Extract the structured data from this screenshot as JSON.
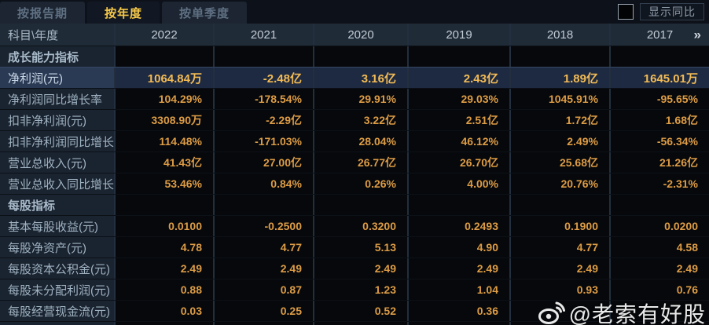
{
  "tabs": [
    {
      "label": "按报告期",
      "active": false
    },
    {
      "label": "按年度",
      "active": true
    },
    {
      "label": "按单季度",
      "active": false
    }
  ],
  "controls": {
    "show_yoy_label": "显示同比",
    "checkbox_checked": false
  },
  "table": {
    "corner_label": "科目\\年度",
    "years": [
      "2022",
      "2021",
      "2020",
      "2019",
      "2018",
      "2017"
    ],
    "more_icon": "»",
    "rows": [
      {
        "type": "section",
        "label": "成长能力指标"
      },
      {
        "type": "data",
        "label": "净利润(元)",
        "highlight": true,
        "values": [
          "1064.84万",
          "-2.48亿",
          "3.16亿",
          "2.43亿",
          "1.89亿",
          "1645.01万"
        ]
      },
      {
        "type": "data",
        "label": "净利润同比增长率",
        "values": [
          "104.29%",
          "-178.54%",
          "29.91%",
          "29.03%",
          "1045.91%",
          "-95.65%"
        ]
      },
      {
        "type": "data",
        "label": "扣非净利润(元)",
        "values": [
          "3308.90万",
          "-2.29亿",
          "3.22亿",
          "2.51亿",
          "1.72亿",
          "1.68亿"
        ]
      },
      {
        "type": "data",
        "label": "扣非净利润同比增长率",
        "values": [
          "114.48%",
          "-171.03%",
          "28.04%",
          "46.12%",
          "2.49%",
          "-56.34%"
        ]
      },
      {
        "type": "data",
        "label": "营业总收入(元)",
        "values": [
          "41.43亿",
          "27.00亿",
          "26.77亿",
          "26.70亿",
          "25.68亿",
          "21.26亿"
        ]
      },
      {
        "type": "data",
        "label": "营业总收入同比增长率",
        "values": [
          "53.46%",
          "0.84%",
          "0.26%",
          "4.00%",
          "20.76%",
          "-2.31%"
        ]
      },
      {
        "type": "section",
        "label": "每股指标"
      },
      {
        "type": "data",
        "label": "基本每股收益(元)",
        "values": [
          "0.0100",
          "-0.2500",
          "0.3200",
          "0.2493",
          "0.1900",
          "0.0200"
        ]
      },
      {
        "type": "data",
        "label": "每股净资产(元)",
        "values": [
          "4.78",
          "4.77",
          "5.13",
          "4.90",
          "4.77",
          "4.58"
        ]
      },
      {
        "type": "data",
        "label": "每股资本公积金(元)",
        "values": [
          "2.49",
          "2.49",
          "2.49",
          "2.49",
          "2.49",
          "2.49"
        ]
      },
      {
        "type": "data",
        "label": "每股未分配利润(元)",
        "values": [
          "0.88",
          "0.87",
          "1.23",
          "1.04",
          "0.93",
          "0.76"
        ]
      },
      {
        "type": "data",
        "label": "每股经营现金流(元)",
        "values": [
          "0.03",
          "0.25",
          "0.52",
          "0.36",
          "",
          ""
        ]
      }
    ]
  },
  "watermark": {
    "handle": "@老索有好股",
    "icon": "weibo-logo"
  },
  "colors": {
    "accent_gold": "#f6c949",
    "value_orange": "#dd9c45",
    "highlight_value": "#f3bb55",
    "highlight_row_bg": "#1d2a42",
    "label_column_bg": "#1a2330",
    "header_row_bg": "#202b38",
    "cell_bg": "#06080b"
  }
}
